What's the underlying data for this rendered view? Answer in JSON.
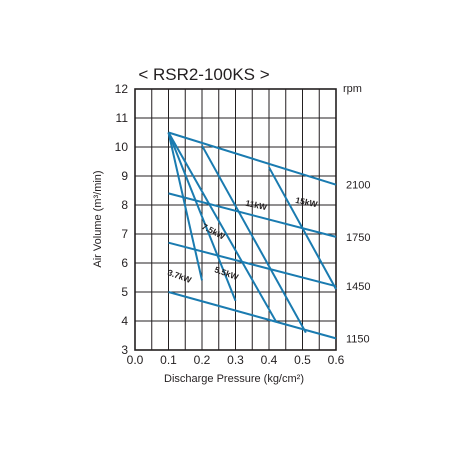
{
  "chart_data": {
    "type": "line",
    "title": "< RSR2-100KS >",
    "xlabel": "Discharge Pressure (kg/cm²)",
    "ylabel": "Air Volume (m³/min)",
    "xlim": [
      0.0,
      0.6
    ],
    "ylim": [
      3,
      12
    ],
    "x_ticks": [
      "0.0",
      "0.1",
      "0.2",
      "0.3",
      "0.4",
      "0.5",
      "0.6"
    ],
    "y_ticks": [
      "3",
      "4",
      "5",
      "6",
      "7",
      "8",
      "9",
      "10",
      "11",
      "12"
    ],
    "grid": true,
    "right_axis_label": "rpm",
    "rpm_labels": [
      {
        "text": "2100",
        "y": 8.7
      },
      {
        "text": "1750",
        "y": 6.9
      },
      {
        "text": "1450",
        "y": 5.2
      },
      {
        "text": "1150",
        "y": 3.4
      }
    ],
    "speed_lines": [
      {
        "rpm": "2100",
        "x": [
          0.1,
          0.6
        ],
        "y": [
          10.5,
          8.7
        ]
      },
      {
        "rpm": "1750",
        "x": [
          0.1,
          0.6
        ],
        "y": [
          8.4,
          6.9
        ]
      },
      {
        "rpm": "1450",
        "x": [
          0.1,
          0.6
        ],
        "y": [
          6.7,
          5.2
        ]
      },
      {
        "rpm": "1150",
        "x": [
          0.1,
          0.6
        ],
        "y": [
          5.0,
          3.4
        ]
      }
    ],
    "power_lines": [
      {
        "name": "3.7kW",
        "x": [
          0.1,
          0.2
        ],
        "y": [
          10.5,
          5.4
        ]
      },
      {
        "name": "5.5kW",
        "x": [
          0.1,
          0.3
        ],
        "y": [
          10.5,
          4.7
        ]
      },
      {
        "name": "7.5kW",
        "x": [
          0.1,
          0.42
        ],
        "y": [
          10.5,
          4.0
        ]
      },
      {
        "name": "11kW",
        "x": [
          0.2,
          0.51
        ],
        "y": [
          10.05,
          3.6
        ]
      },
      {
        "name": "15kW",
        "x": [
          0.4,
          0.6
        ],
        "y": [
          9.3,
          5.1
        ]
      }
    ],
    "power_labels": [
      {
        "text": "3.7kW",
        "x": 0.13,
        "y": 5.45,
        "angle": 20
      },
      {
        "text": "5.5kW",
        "x": 0.27,
        "y": 5.55,
        "angle": 20
      },
      {
        "text": "7.5kW",
        "x": 0.23,
        "y": 7.0,
        "angle": 28
      },
      {
        "text": "11kW",
        "x": 0.36,
        "y": 7.9,
        "angle": 12
      },
      {
        "text": "15kW",
        "x": 0.51,
        "y": 8.0,
        "angle": 12
      }
    ],
    "colors": {
      "line": "#1a7bb0",
      "grid": "#231f20",
      "frame": "#231f20",
      "text": "#231f20"
    }
  }
}
